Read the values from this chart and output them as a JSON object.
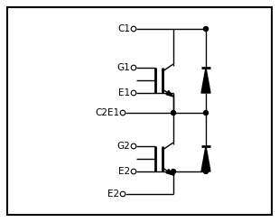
{
  "bg_color": "#ffffff",
  "border_color": "#000000",
  "line_color": "#000000",
  "figsize": [
    3.09,
    2.46
  ],
  "dpi": 100,
  "pin_labels": [
    "C1",
    "G1",
    "E1",
    "C2E1",
    "G2",
    "E2",
    "E2"
  ],
  "font_size": 7.5
}
